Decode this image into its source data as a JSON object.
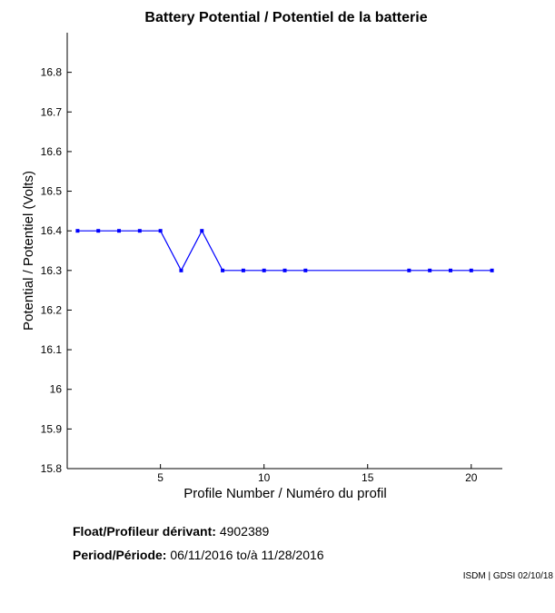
{
  "chart_data": {
    "type": "line",
    "title": "Battery Potential / Potentiel de la batterie",
    "xlabel": "Profile Number / Numéro du profil",
    "ylabel": "Potential / Potentiel (Volts)",
    "xlim": [
      0.5,
      21.5
    ],
    "ylim": [
      15.8,
      16.9
    ],
    "xticks": [
      5,
      10,
      15,
      20
    ],
    "yticks": [
      15.8,
      15.9,
      16,
      16.1,
      16.2,
      16.3,
      16.4,
      16.5,
      16.6,
      16.7,
      16.8
    ],
    "ytick_labels": [
      "15.8",
      "15.9",
      "16",
      "16.1",
      "16.2",
      "16.3",
      "16.4",
      "16.5",
      "16.6",
      "16.7",
      "16.8"
    ],
    "grid": false,
    "color": "#0000ff",
    "x": [
      1,
      2,
      3,
      4,
      5,
      6,
      7,
      8,
      9,
      10,
      11,
      12,
      17,
      18,
      19,
      20,
      21
    ],
    "y": [
      16.4,
      16.4,
      16.4,
      16.4,
      16.4,
      16.3,
      16.4,
      16.3,
      16.3,
      16.3,
      16.3,
      16.3,
      16.3,
      16.3,
      16.3,
      16.3,
      16.3
    ]
  },
  "info": {
    "float_label": "Float/Profileur dérivant:",
    "float_value": "4902389",
    "period_label": "Period/Période:",
    "period_start": "06/11/2016",
    "period_sep": "to/à",
    "period_end": "11/28/2016",
    "credit": "ISDM | GDSI 02/10/18"
  }
}
